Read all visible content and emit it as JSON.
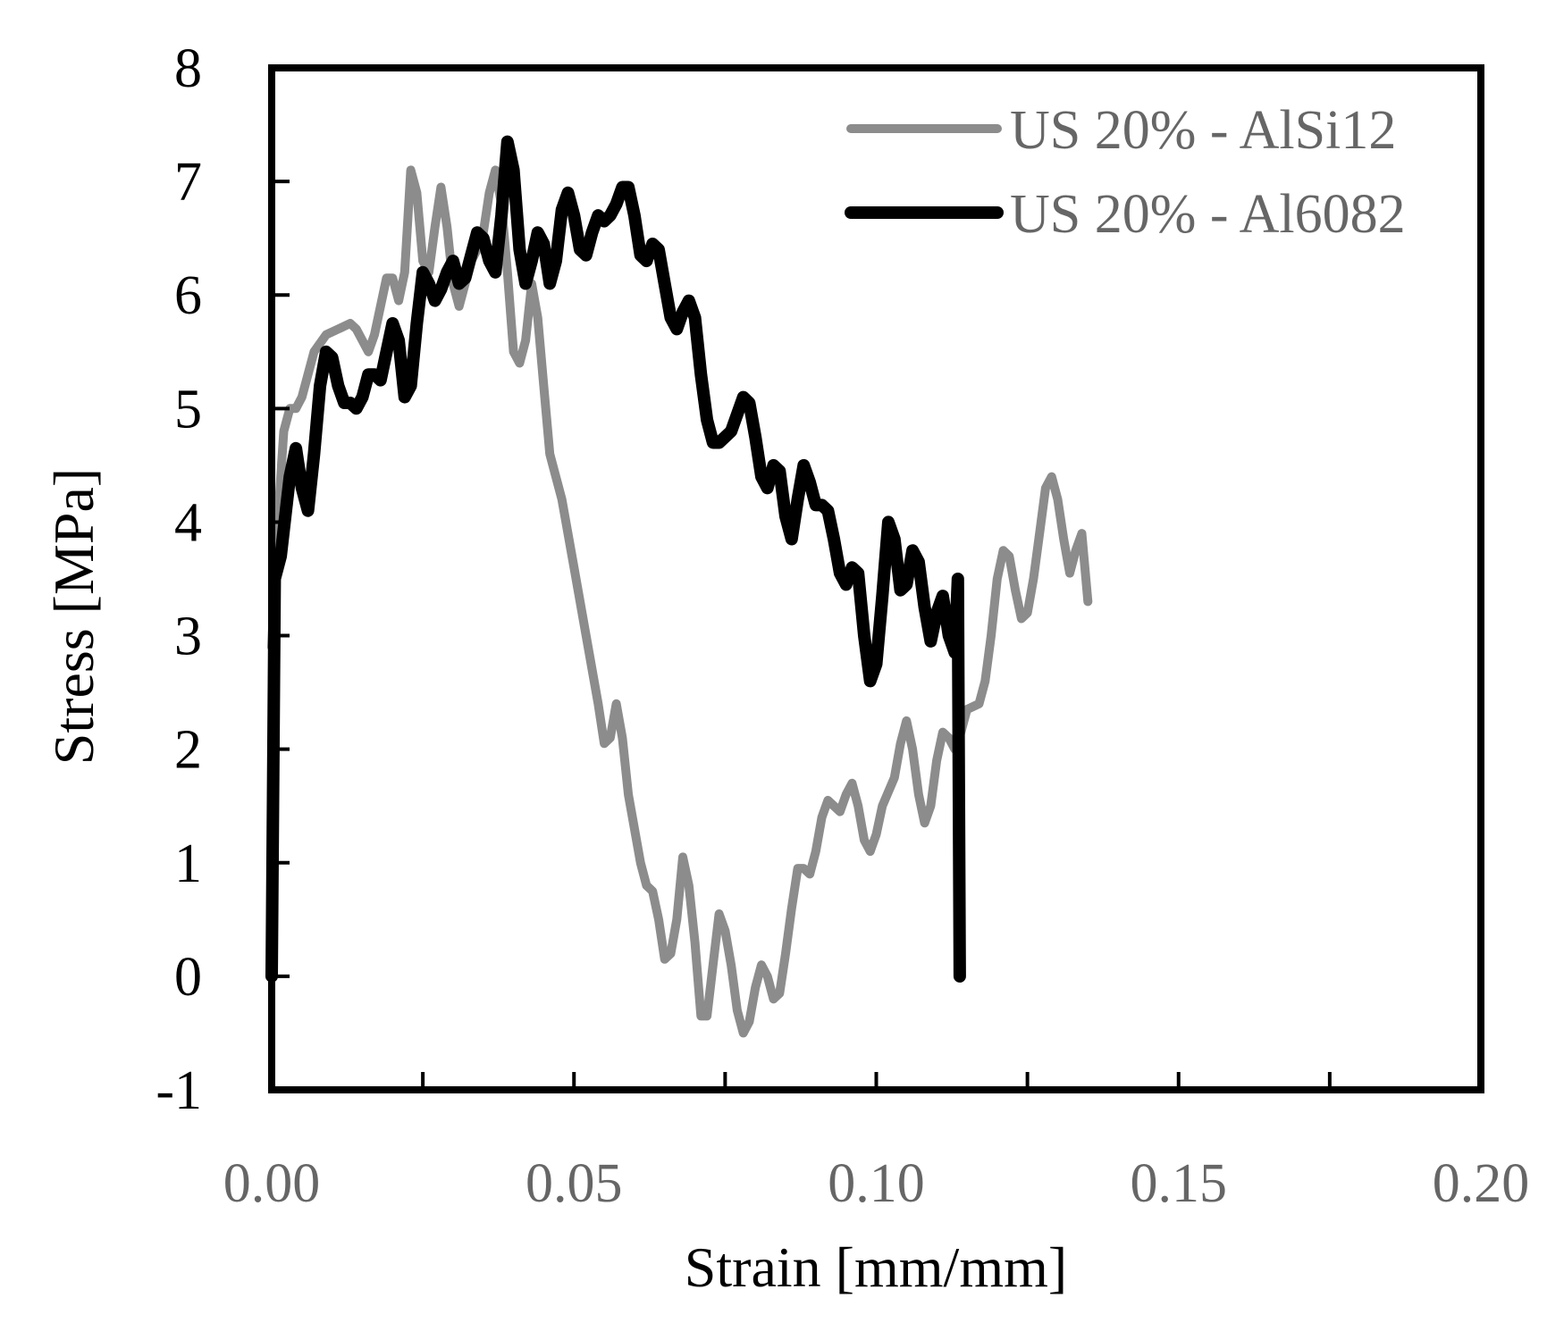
{
  "chart_data": {
    "type": "line",
    "title": "",
    "xlabel": "Strain [mm/mm]",
    "ylabel": "Stress [MPa]",
    "xlim": [
      0,
      0.2
    ],
    "ylim": [
      -1,
      8
    ],
    "x_ticks": [
      "0.00",
      "0.05",
      "0.10",
      "0.15",
      "0.20"
    ],
    "y_ticks": [
      "-1",
      "0",
      "1",
      "2",
      "3",
      "4",
      "5",
      "6",
      "7",
      "8"
    ],
    "grid": false,
    "legend_position": "top-right",
    "x_tick_color": "#666666",
    "y_tick_color": "#000000",
    "series": [
      {
        "name": "US 20% - AlSi12",
        "color": "#8c8c8c",
        "points": [
          [
            0.0,
            2.9
          ],
          [
            0.001,
            4.0
          ],
          [
            0.002,
            4.8
          ],
          [
            0.003,
            5.0
          ],
          [
            0.004,
            5.0
          ],
          [
            0.005,
            5.1
          ],
          [
            0.007,
            5.5
          ],
          [
            0.009,
            5.65
          ],
          [
            0.011,
            5.7
          ],
          [
            0.013,
            5.75
          ],
          [
            0.014,
            5.7
          ],
          [
            0.016,
            5.5
          ],
          [
            0.017,
            5.65
          ],
          [
            0.019,
            6.15
          ],
          [
            0.02,
            6.15
          ],
          [
            0.021,
            5.95
          ],
          [
            0.022,
            6.2
          ],
          [
            0.023,
            7.1
          ],
          [
            0.024,
            6.9
          ],
          [
            0.025,
            6.3
          ],
          [
            0.026,
            6.2
          ],
          [
            0.027,
            6.6
          ],
          [
            0.028,
            6.95
          ],
          [
            0.029,
            6.6
          ],
          [
            0.03,
            6.1
          ],
          [
            0.031,
            5.9
          ],
          [
            0.032,
            6.1
          ],
          [
            0.033,
            6.3
          ],
          [
            0.034,
            6.4
          ],
          [
            0.035,
            6.55
          ],
          [
            0.036,
            6.9
          ],
          [
            0.037,
            7.1
          ],
          [
            0.038,
            6.8
          ],
          [
            0.039,
            6.2
          ],
          [
            0.04,
            5.5
          ],
          [
            0.041,
            5.4
          ],
          [
            0.042,
            5.6
          ],
          [
            0.043,
            6.1
          ],
          [
            0.044,
            5.8
          ],
          [
            0.045,
            5.2
          ],
          [
            0.046,
            4.6
          ],
          [
            0.048,
            4.2
          ],
          [
            0.05,
            3.6
          ],
          [
            0.052,
            3.0
          ],
          [
            0.054,
            2.4
          ],
          [
            0.055,
            2.05
          ],
          [
            0.056,
            2.1
          ],
          [
            0.057,
            2.4
          ],
          [
            0.058,
            2.1
          ],
          [
            0.059,
            1.6
          ],
          [
            0.061,
            1.0
          ],
          [
            0.062,
            0.8
          ],
          [
            0.063,
            0.75
          ],
          [
            0.064,
            0.5
          ],
          [
            0.065,
            0.15
          ],
          [
            0.066,
            0.2
          ],
          [
            0.067,
            0.5
          ],
          [
            0.068,
            1.05
          ],
          [
            0.069,
            0.8
          ],
          [
            0.07,
            0.3
          ],
          [
            0.071,
            -0.35
          ],
          [
            0.072,
            -0.35
          ],
          [
            0.073,
            0.1
          ],
          [
            0.074,
            0.55
          ],
          [
            0.075,
            0.4
          ],
          [
            0.076,
            0.1
          ],
          [
            0.077,
            -0.3
          ],
          [
            0.078,
            -0.5
          ],
          [
            0.079,
            -0.4
          ],
          [
            0.08,
            -0.1
          ],
          [
            0.081,
            0.1
          ],
          [
            0.082,
            0.0
          ],
          [
            0.083,
            -0.2
          ],
          [
            0.084,
            -0.15
          ],
          [
            0.085,
            0.2
          ],
          [
            0.086,
            0.6
          ],
          [
            0.087,
            0.95
          ],
          [
            0.088,
            0.95
          ],
          [
            0.089,
            0.9
          ],
          [
            0.09,
            1.1
          ],
          [
            0.091,
            1.4
          ],
          [
            0.092,
            1.55
          ],
          [
            0.093,
            1.5
          ],
          [
            0.094,
            1.45
          ],
          [
            0.095,
            1.6
          ],
          [
            0.096,
            1.7
          ],
          [
            0.097,
            1.5
          ],
          [
            0.098,
            1.2
          ],
          [
            0.099,
            1.1
          ],
          [
            0.1,
            1.25
          ],
          [
            0.101,
            1.5
          ],
          [
            0.103,
            1.75
          ],
          [
            0.104,
            2.05
          ],
          [
            0.105,
            2.25
          ],
          [
            0.106,
            2.0
          ],
          [
            0.107,
            1.6
          ],
          [
            0.108,
            1.35
          ],
          [
            0.109,
            1.5
          ],
          [
            0.11,
            1.9
          ],
          [
            0.111,
            2.15
          ],
          [
            0.112,
            2.1
          ],
          [
            0.113,
            2.0
          ],
          [
            0.114,
            2.15
          ],
          [
            0.115,
            2.35
          ],
          [
            0.117,
            2.4
          ],
          [
            0.118,
            2.6
          ],
          [
            0.119,
            3.0
          ],
          [
            0.12,
            3.5
          ],
          [
            0.121,
            3.75
          ],
          [
            0.122,
            3.7
          ],
          [
            0.123,
            3.4
          ],
          [
            0.124,
            3.15
          ],
          [
            0.125,
            3.2
          ],
          [
            0.126,
            3.5
          ],
          [
            0.127,
            3.9
          ],
          [
            0.128,
            4.3
          ],
          [
            0.129,
            4.4
          ],
          [
            0.13,
            4.2
          ],
          [
            0.131,
            3.85
          ],
          [
            0.132,
            3.55
          ],
          [
            0.133,
            3.75
          ],
          [
            0.134,
            3.9
          ],
          [
            0.135,
            3.3
          ]
        ]
      },
      {
        "name": "US 20% - Al6082",
        "color": "#000000",
        "points": [
          [
            0.0,
            0.0
          ],
          [
            0.0005,
            3.5
          ],
          [
            0.0015,
            3.7
          ],
          [
            0.003,
            4.4
          ],
          [
            0.004,
            4.65
          ],
          [
            0.005,
            4.3
          ],
          [
            0.006,
            4.1
          ],
          [
            0.007,
            4.6
          ],
          [
            0.008,
            5.2
          ],
          [
            0.009,
            5.5
          ],
          [
            0.01,
            5.45
          ],
          [
            0.011,
            5.2
          ],
          [
            0.012,
            5.05
          ],
          [
            0.013,
            5.05
          ],
          [
            0.014,
            5.0
          ],
          [
            0.015,
            5.1
          ],
          [
            0.016,
            5.3
          ],
          [
            0.017,
            5.3
          ],
          [
            0.018,
            5.25
          ],
          [
            0.019,
            5.5
          ],
          [
            0.02,
            5.75
          ],
          [
            0.021,
            5.6
          ],
          [
            0.022,
            5.1
          ],
          [
            0.023,
            5.2
          ],
          [
            0.024,
            5.75
          ],
          [
            0.025,
            6.2
          ],
          [
            0.026,
            6.1
          ],
          [
            0.027,
            5.95
          ],
          [
            0.028,
            6.05
          ],
          [
            0.029,
            6.2
          ],
          [
            0.03,
            6.3
          ],
          [
            0.031,
            6.1
          ],
          [
            0.032,
            6.15
          ],
          [
            0.033,
            6.35
          ],
          [
            0.034,
            6.55
          ],
          [
            0.035,
            6.5
          ],
          [
            0.036,
            6.3
          ],
          [
            0.037,
            6.2
          ],
          [
            0.038,
            6.7
          ],
          [
            0.039,
            7.35
          ],
          [
            0.04,
            7.1
          ],
          [
            0.041,
            6.4
          ],
          [
            0.042,
            6.1
          ],
          [
            0.043,
            6.3
          ],
          [
            0.044,
            6.55
          ],
          [
            0.045,
            6.45
          ],
          [
            0.046,
            6.1
          ],
          [
            0.047,
            6.3
          ],
          [
            0.048,
            6.75
          ],
          [
            0.049,
            6.9
          ],
          [
            0.05,
            6.7
          ],
          [
            0.051,
            6.4
          ],
          [
            0.052,
            6.35
          ],
          [
            0.053,
            6.55
          ],
          [
            0.054,
            6.7
          ],
          [
            0.055,
            6.65
          ],
          [
            0.056,
            6.7
          ],
          [
            0.057,
            6.8
          ],
          [
            0.058,
            6.95
          ],
          [
            0.059,
            6.95
          ],
          [
            0.06,
            6.7
          ],
          [
            0.061,
            6.35
          ],
          [
            0.062,
            6.3
          ],
          [
            0.063,
            6.45
          ],
          [
            0.064,
            6.4
          ],
          [
            0.065,
            6.1
          ],
          [
            0.066,
            5.8
          ],
          [
            0.067,
            5.7
          ],
          [
            0.068,
            5.85
          ],
          [
            0.069,
            5.95
          ],
          [
            0.07,
            5.8
          ],
          [
            0.071,
            5.3
          ],
          [
            0.072,
            4.9
          ],
          [
            0.073,
            4.7
          ],
          [
            0.074,
            4.7
          ],
          [
            0.075,
            4.75
          ],
          [
            0.076,
            4.8
          ],
          [
            0.077,
            4.95
          ],
          [
            0.078,
            5.1
          ],
          [
            0.079,
            5.05
          ],
          [
            0.08,
            4.75
          ],
          [
            0.081,
            4.4
          ],
          [
            0.082,
            4.3
          ],
          [
            0.083,
            4.5
          ],
          [
            0.084,
            4.45
          ],
          [
            0.085,
            4.05
          ],
          [
            0.086,
            3.85
          ],
          [
            0.087,
            4.2
          ],
          [
            0.088,
            4.5
          ],
          [
            0.089,
            4.35
          ],
          [
            0.09,
            4.15
          ],
          [
            0.091,
            4.15
          ],
          [
            0.092,
            4.1
          ],
          [
            0.093,
            3.85
          ],
          [
            0.094,
            3.55
          ],
          [
            0.095,
            3.45
          ],
          [
            0.096,
            3.6
          ],
          [
            0.097,
            3.55
          ],
          [
            0.098,
            3.0
          ],
          [
            0.099,
            2.6
          ],
          [
            0.1,
            2.75
          ],
          [
            0.101,
            3.35
          ],
          [
            0.102,
            4.0
          ],
          [
            0.103,
            3.85
          ],
          [
            0.104,
            3.4
          ],
          [
            0.105,
            3.45
          ],
          [
            0.106,
            3.75
          ],
          [
            0.107,
            3.65
          ],
          [
            0.108,
            3.25
          ],
          [
            0.109,
            2.95
          ],
          [
            0.11,
            3.2
          ],
          [
            0.111,
            3.35
          ],
          [
            0.112,
            3.0
          ],
          [
            0.113,
            2.85
          ],
          [
            0.1135,
            3.5
          ],
          [
            0.1138,
            0.0
          ]
        ]
      }
    ]
  }
}
